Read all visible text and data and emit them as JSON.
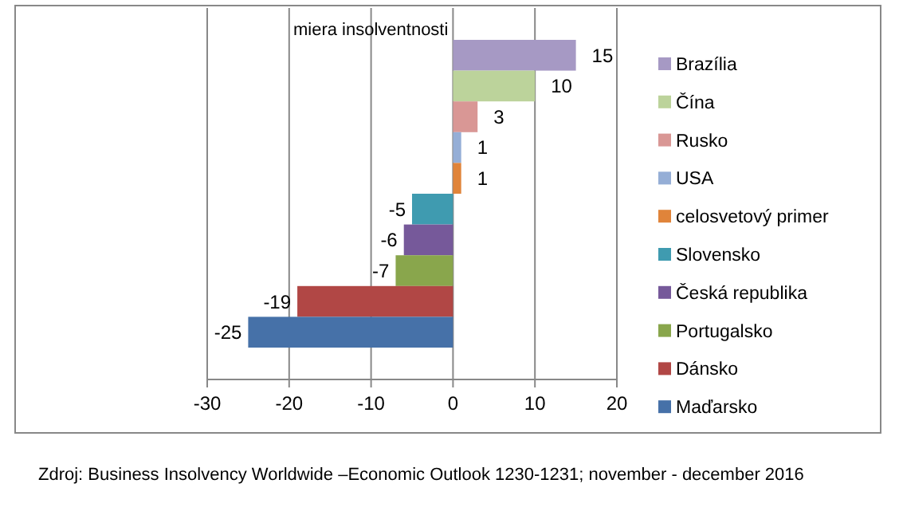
{
  "chart_data": {
    "type": "bar",
    "orientation": "horizontal",
    "title": "miera insolventnosti",
    "categories": [
      null
    ],
    "series": [
      {
        "name": "Brazília",
        "color": "#a699c4",
        "values": [
          15
        ]
      },
      {
        "name": "Čína",
        "color": "#bcd39b",
        "values": [
          10
        ]
      },
      {
        "name": "Rusko",
        "color": "#d99795",
        "values": [
          3
        ]
      },
      {
        "name": "USA",
        "color": "#95aed6",
        "values": [
          1
        ]
      },
      {
        "name": "celosvetový primer",
        "color": "#e0843a",
        "values": [
          1
        ]
      },
      {
        "name": "Slovensko",
        "color": "#3f9bb0",
        "values": [
          -5
        ]
      },
      {
        "name": "Česká republika",
        "color": "#76599a",
        "values": [
          -6
        ]
      },
      {
        "name": "Portugalsko",
        "color": "#89a64c",
        "values": [
          -7
        ]
      },
      {
        "name": "Dánsko",
        "color": "#b14745",
        "values": [
          -19
        ]
      },
      {
        "name": "Maďarsko",
        "color": "#4671a8",
        "values": [
          -25
        ]
      }
    ],
    "xlim": [
      -30,
      20
    ],
    "xticks": [
      -30,
      -20,
      -10,
      0,
      10,
      20
    ],
    "grid": "x",
    "legend": "right",
    "data_labels": true,
    "annotations": [
      "Zdroj: Business Insolvency Worldwide –Economic Outlook 1230-1231; november - december 2016"
    ]
  }
}
